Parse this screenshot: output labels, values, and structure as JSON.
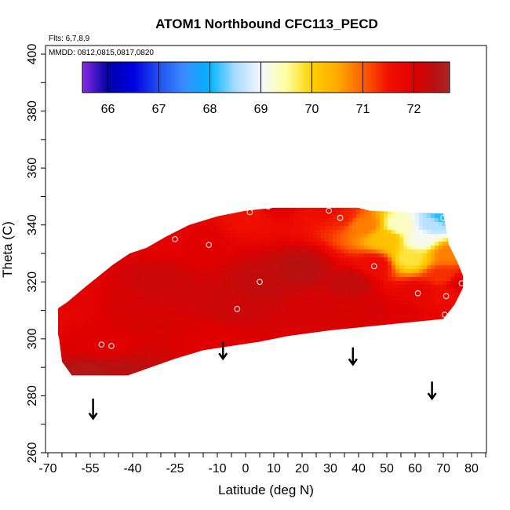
{
  "chart_data": {
    "type": "heatmap",
    "title": "ATOM1 Northbound CFC113_PECD",
    "annotations": [
      "Flts: 6,7,8,9",
      "MMDD: 0812,0815,0817,0820"
    ],
    "xlabel": "Latitude (deg N)",
    "ylabel": "Theta (C)",
    "xlim": [
      -70,
      85
    ],
    "ylim": [
      260,
      400
    ],
    "x_ticks": [
      -70,
      -55,
      -40,
      -25,
      -10,
      0,
      10,
      20,
      30,
      40,
      50,
      60,
      70,
      80
    ],
    "y_ticks": [
      260,
      280,
      300,
      320,
      340,
      360,
      380,
      400
    ],
    "colorbar": {
      "range": [
        65.5,
        72.7
      ],
      "tick_values": [
        66,
        67,
        68,
        69,
        70,
        71,
        72
      ],
      "tick_labels": [
        "66",
        "67",
        "68",
        "69",
        "70",
        "71",
        "72"
      ],
      "stops": [
        {
          "value": 65.5,
          "color": "#8a2be2"
        },
        {
          "value": 66.0,
          "color": "#0000a8"
        },
        {
          "value": 66.5,
          "color": "#0000e0"
        },
        {
          "value": 67.0,
          "color": "#2050f0"
        },
        {
          "value": 67.5,
          "color": "#3a8cff"
        },
        {
          "value": 68.0,
          "color": "#00b4ff"
        },
        {
          "value": 68.5,
          "color": "#a8dcff"
        },
        {
          "value": 69.0,
          "color": "#f4f8ff"
        },
        {
          "value": 69.5,
          "color": "#ffffa0"
        },
        {
          "value": 70.0,
          "color": "#ffd000"
        },
        {
          "value": 70.5,
          "color": "#ffaa00"
        },
        {
          "value": 71.0,
          "color": "#ff6000"
        },
        {
          "value": 71.5,
          "color": "#f01000"
        },
        {
          "value": 72.0,
          "color": "#e00000"
        },
        {
          "value": 72.4,
          "color": "#b81010"
        },
        {
          "value": 72.7,
          "color": "#a82828"
        }
      ]
    },
    "field_polygon": [
      [
        -67.5,
        310
      ],
      [
        -63,
        313
      ],
      [
        -57,
        318
      ],
      [
        -52,
        322
      ],
      [
        -47,
        326
      ],
      [
        -41,
        330
      ],
      [
        -35,
        332
      ],
      [
        -28,
        336
      ],
      [
        -20,
        340
      ],
      [
        -10,
        343
      ],
      [
        0,
        345
      ],
      [
        10,
        346
      ],
      [
        30,
        346
      ],
      [
        40,
        346
      ],
      [
        44,
        345
      ],
      [
        70,
        344
      ],
      [
        72,
        333
      ],
      [
        75,
        327
      ],
      [
        77,
        322
      ],
      [
        77,
        318
      ],
      [
        74,
        312
      ],
      [
        70,
        307
      ],
      [
        50,
        305
      ],
      [
        30,
        303
      ],
      [
        15,
        301
      ],
      [
        5,
        299
      ],
      [
        -15,
        296
      ],
      [
        -25,
        293
      ],
      [
        -45,
        286
      ],
      [
        -55,
        283
      ],
      [
        -60,
        285
      ],
      [
        -65,
        292
      ],
      [
        -66,
        300
      ],
      [
        -67.5,
        306
      ]
    ],
    "anchors": [
      {
        "lat": -68,
        "theta": 309,
        "value": 71.8
      },
      {
        "lat": -63,
        "theta": 313,
        "value": 71.9
      },
      {
        "lat": -55,
        "theta": 300,
        "value": 72.0
      },
      {
        "lat": -48,
        "theta": 298,
        "value": 72.0
      },
      {
        "lat": -45,
        "theta": 288,
        "value": 72.4
      },
      {
        "lat": -55,
        "theta": 287,
        "value": 72.5
      },
      {
        "lat": -40,
        "theta": 310,
        "value": 72.1
      },
      {
        "lat": -30,
        "theta": 320,
        "value": 72.2
      },
      {
        "lat": -25,
        "theta": 335,
        "value": 71.9
      },
      {
        "lat": -18,
        "theta": 333,
        "value": 72.0
      },
      {
        "lat": -5,
        "theta": 311,
        "value": 72.2
      },
      {
        "lat": -10,
        "theta": 300,
        "value": 72.0
      },
      {
        "lat": 2,
        "theta": 344,
        "value": 71.5
      },
      {
        "lat": 6,
        "theta": 320,
        "value": 72.3
      },
      {
        "lat": 8,
        "theta": 347,
        "value": 72.0
      },
      {
        "lat": 20,
        "theta": 325,
        "value": 72.4
      },
      {
        "lat": 25,
        "theta": 310,
        "value": 72.1
      },
      {
        "lat": 30,
        "theta": 345,
        "value": 71.6
      },
      {
        "lat": 34,
        "theta": 343,
        "value": 71.4
      },
      {
        "lat": 38,
        "theta": 320,
        "value": 72.3
      },
      {
        "lat": 42,
        "theta": 340,
        "value": 70.8
      },
      {
        "lat": 46,
        "theta": 326,
        "value": 71.6
      },
      {
        "lat": 50,
        "theta": 335,
        "value": 70.2
      },
      {
        "lat": 55,
        "theta": 340,
        "value": 69.3
      },
      {
        "lat": 58,
        "theta": 328,
        "value": 69.8
      },
      {
        "lat": 62,
        "theta": 335,
        "value": 69.1
      },
      {
        "lat": 66,
        "theta": 340,
        "value": 68.6
      },
      {
        "lat": 70,
        "theta": 343,
        "value": 68.1
      },
      {
        "lat": 72,
        "theta": 330,
        "value": 70.8
      },
      {
        "lat": 70,
        "theta": 322,
        "value": 71.3
      },
      {
        "lat": 61,
        "theta": 316,
        "value": 71.8
      },
      {
        "lat": 72,
        "theta": 315,
        "value": 71.6
      },
      {
        "lat": 76,
        "theta": 319,
        "value": 72.0
      },
      {
        "lat": 55,
        "theta": 308,
        "value": 72.0
      },
      {
        "lat": 45,
        "theta": 310,
        "value": 72.1
      },
      {
        "lat": 71,
        "theta": 308,
        "value": 71.8
      }
    ],
    "points": [
      {
        "lat": -67.5,
        "theta": 309
      },
      {
        "lat": -51,
        "theta": 298
      },
      {
        "lat": -47.5,
        "theta": 297.5
      },
      {
        "lat": -25,
        "theta": 335
      },
      {
        "lat": -13,
        "theta": 333
      },
      {
        "lat": -3,
        "theta": 310.5
      },
      {
        "lat": 1.5,
        "theta": 344.5
      },
      {
        "lat": 5,
        "theta": 320
      },
      {
        "lat": 8,
        "theta": 346.5
      },
      {
        "lat": 29.5,
        "theta": 345
      },
      {
        "lat": 33.5,
        "theta": 342.5
      },
      {
        "lat": 45.5,
        "theta": 325.5
      },
      {
        "lat": 61,
        "theta": 316
      },
      {
        "lat": 70,
        "theta": 342.5
      },
      {
        "lat": 71,
        "theta": 315
      },
      {
        "lat": 70.5,
        "theta": 308.5
      },
      {
        "lat": 76.5,
        "theta": 319.5
      }
    ],
    "arrows": [
      {
        "lat": -54,
        "theta_top": 279,
        "theta_bottom": 272
      },
      {
        "lat": -8,
        "theta_top": 299,
        "theta_bottom": 293
      },
      {
        "lat": 38,
        "theta_top": 297,
        "theta_bottom": 291
      },
      {
        "lat": 66,
        "theta_top": 285,
        "theta_bottom": 279
      }
    ],
    "grid": false,
    "legend": "none"
  }
}
